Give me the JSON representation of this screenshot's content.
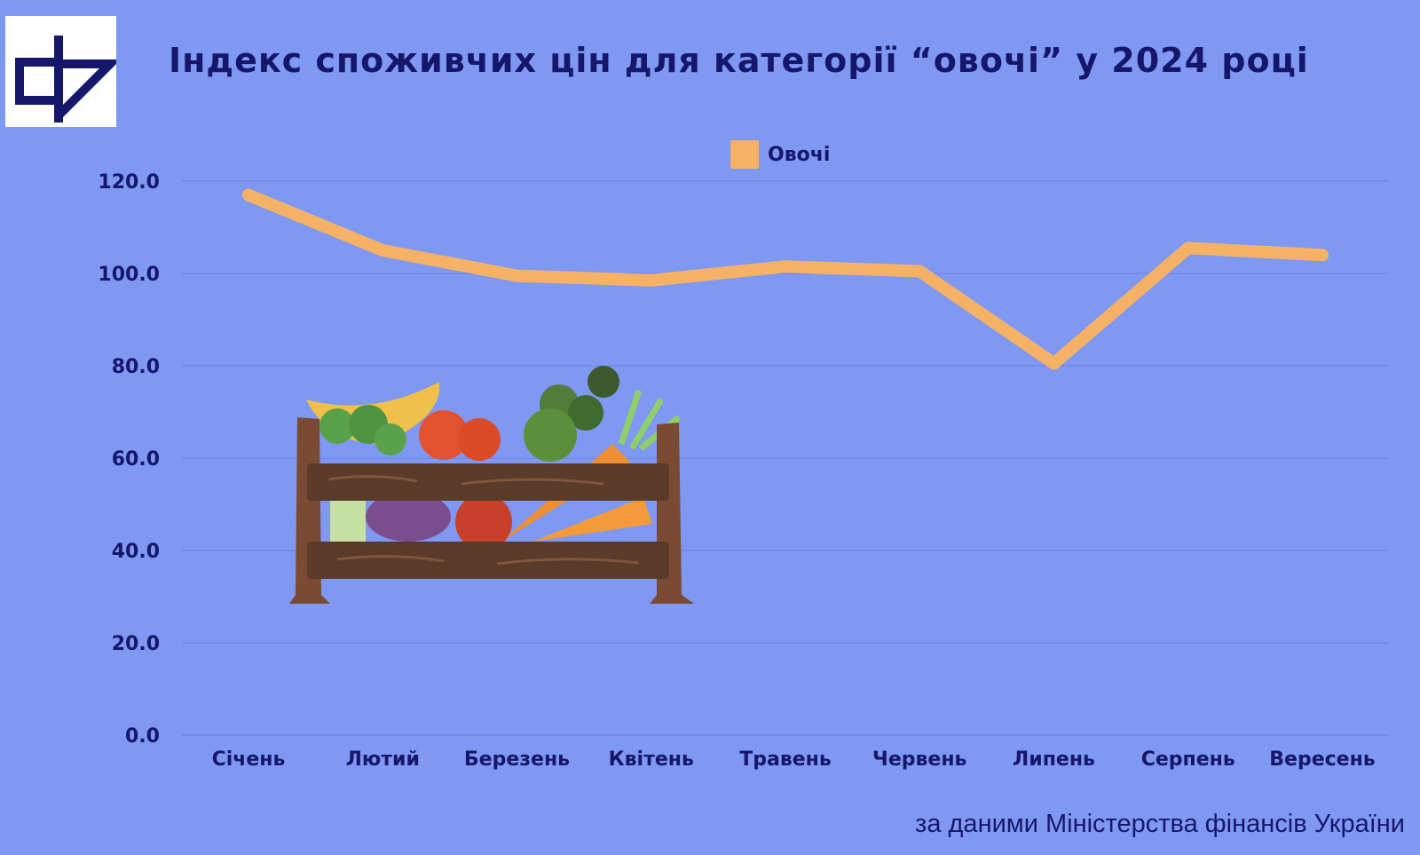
{
  "title": "Індекс споживчих цін для категорії “овочі” у 2024 році",
  "source": "за даними Міністерства фінансів України",
  "logo": {
    "icon": "cf-logo-icon"
  },
  "illustration": {
    "icon": "vegetable-crate-icon"
  },
  "colors": {
    "background": "#7f98f2",
    "line": "#f5b266",
    "text": "#16176b",
    "grid": "#6b7fe0"
  },
  "chart_data": {
    "type": "line",
    "categories": [
      "Січень",
      "Лютий",
      "Березень",
      "Квітень",
      "Травень",
      "Червень",
      "Липень",
      "Серпень",
      "Вересень"
    ],
    "series": [
      {
        "name": "Овочі",
        "values": [
          117.0,
          105.0,
          99.5,
          98.5,
          101.5,
          100.5,
          80.5,
          105.5,
          104.0
        ]
      }
    ],
    "ylim": [
      0,
      120
    ],
    "yticks": [
      "0.0",
      "20.0",
      "40.0",
      "60.0",
      "80.0",
      "100.0",
      "120.0"
    ],
    "grid": true,
    "legend": "top-center"
  }
}
